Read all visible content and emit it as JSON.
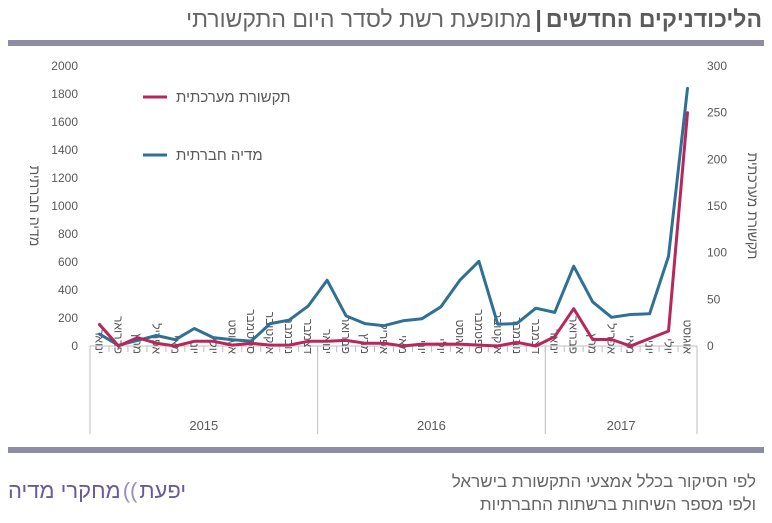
{
  "header": {
    "title_bold": "הליכודניקים החדשים",
    "separator": "|",
    "title_rest": "מתופעת רשת לסדר היום התקשורתי"
  },
  "footer": {
    "brand_part1": "יפעת",
    "brand_separator": "))",
    "brand_part2": "מחקרי מדיה",
    "note_line1": "לפי הסיקור בכלל אמצעי התקשורת בישראל",
    "note_line2": "ולפי מספר השיחות ברשתות החברתיות"
  },
  "chart_data": {
    "type": "line",
    "title": "",
    "colors": {
      "social": "#2e7194",
      "media": "#b8275b",
      "axis": "#bfbfbf",
      "text": "#595959"
    },
    "categories": [
      "ינואר",
      "פברואר",
      "מרץ",
      "אפריל",
      "מאי",
      "יוני",
      "יולי",
      "אוגוסט",
      "ספטמבר",
      "אוקטובר",
      "נובמבר",
      "דצמבר",
      "ינואר",
      "פברואר",
      "מרץ",
      "אפריל",
      "מאי",
      "יוני",
      "יולי",
      "אוגוסט",
      "ספטמבר",
      "אוקטובר",
      "נובמבר",
      "דצמבר",
      "ינואר",
      "פברואר",
      "מרץ",
      "אפריל",
      "מאי",
      "יוני",
      "יולי",
      "אוגוסט"
    ],
    "years": [
      {
        "label": "2015",
        "start": 0,
        "end": 11
      },
      {
        "label": "2016",
        "start": 12,
        "end": 23
      },
      {
        "label": "2017",
        "start": 24,
        "end": 31
      }
    ],
    "series": [
      {
        "name": "מדיה חברתית",
        "axis": "left",
        "color": "#2e7194",
        "values": [
          85,
          5,
          40,
          75,
          45,
          125,
          60,
          45,
          35,
          160,
          185,
          285,
          470,
          215,
          160,
          145,
          180,
          195,
          280,
          470,
          605,
          155,
          160,
          270,
          240,
          570,
          315,
          205,
          225,
          230,
          640,
          1840
        ]
      },
      {
        "name": "תקשורת מערכתית",
        "axis": "right",
        "color": "#b8275b",
        "values": [
          23,
          0,
          9,
          3,
          0,
          5,
          5,
          1,
          3,
          1,
          1,
          5,
          5,
          6,
          3,
          3,
          0,
          2,
          2,
          2,
          1,
          0,
          4,
          0,
          10,
          40,
          7,
          7,
          0,
          8,
          16,
          250
        ]
      }
    ],
    "y_left": {
      "label": "מדיה חברתית",
      "min": 0,
      "max": 2000,
      "ticks": [
        0,
        200,
        400,
        600,
        800,
        1000,
        1200,
        1400,
        1600,
        1800,
        2000
      ]
    },
    "y_right": {
      "label": "תקשורת מערכתית",
      "min": 0,
      "max": 300,
      "ticks": [
        0,
        50,
        100,
        150,
        200,
        250,
        300
      ]
    },
    "legend": [
      {
        "label": "תקשורת מערכתית",
        "color": "#b8275b"
      },
      {
        "label": "מדיה חברתית",
        "color": "#2e7194"
      }
    ],
    "legend_position": "top-left"
  }
}
